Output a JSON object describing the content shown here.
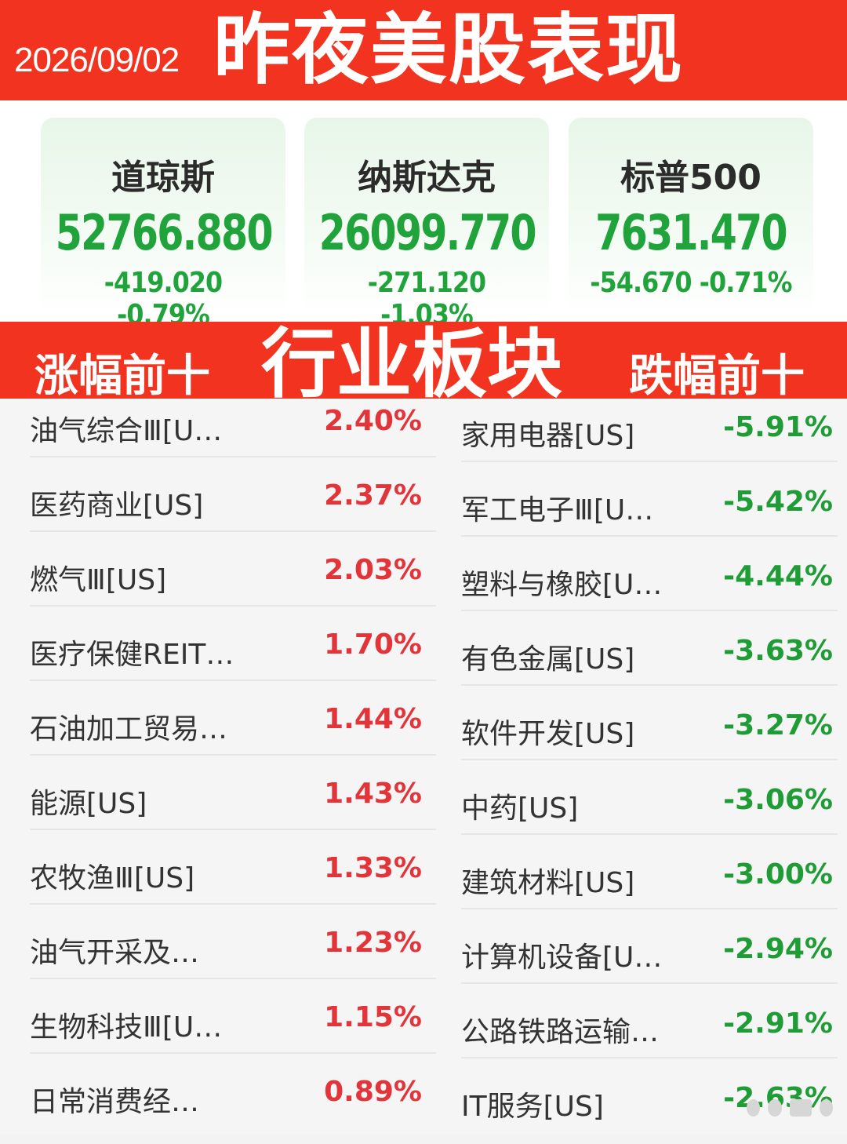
{
  "header": {
    "date": "2026/09/02",
    "title": "昨夜美股表现"
  },
  "indices": [
    {
      "name": "道琼斯",
      "value": "52766.880",
      "change": "-419.020",
      "change_pct": "-0.79%"
    },
    {
      "name": "纳斯达克",
      "value": "26099.770",
      "change": "-271.120",
      "change_pct": "-1.03%"
    },
    {
      "name": "标普500",
      "value": "7631.470",
      "change": "-54.670",
      "change_pct": "-0.71%"
    }
  ],
  "sector_banner": {
    "left": "涨幅前十",
    "center": "行业板块",
    "right": "跌幅前十"
  },
  "gainers": [
    {
      "name": "油气综合Ⅲ[U…",
      "pct": "2.40%"
    },
    {
      "name": "医药商业[US]",
      "pct": "2.37%"
    },
    {
      "name": "燃气Ⅲ[US]",
      "pct": "2.03%"
    },
    {
      "name": "医疗保健REIT…",
      "pct": "1.70%"
    },
    {
      "name": "石油加工贸易…",
      "pct": "1.44%"
    },
    {
      "name": "能源[US]",
      "pct": "1.43%"
    },
    {
      "name": "农牧渔Ⅲ[US]",
      "pct": "1.33%"
    },
    {
      "name": "油气开采及…",
      "pct": "1.23%"
    },
    {
      "name": "生物科技Ⅲ[U…",
      "pct": "1.15%"
    },
    {
      "name": "日常消费经…",
      "pct": "0.89%"
    }
  ],
  "losers": [
    {
      "name": "家用电器[US]",
      "pct": "-5.91%"
    },
    {
      "name": "军工电子Ⅲ[U…",
      "pct": "-5.42%"
    },
    {
      "name": "塑料与橡胶[U…",
      "pct": "-4.44%"
    },
    {
      "name": "有色金属[US]",
      "pct": "-3.63%"
    },
    {
      "name": "软件开发[US]",
      "pct": "-3.27%"
    },
    {
      "name": "中药[US]",
      "pct": "-3.06%"
    },
    {
      "name": "建筑材料[US]",
      "pct": "-3.00%"
    },
    {
      "name": "计算机设备[U…",
      "pct": "-2.94%"
    },
    {
      "name": "公路铁路运输…",
      "pct": "-2.91%"
    },
    {
      "name": "IT服务[US]",
      "pct": "-2.63%"
    }
  ],
  "colors": {
    "banner_red": "#f2331f",
    "gain_red": "#e3343a",
    "loss_green": "#1f9c35",
    "index_green": "#20a33a"
  }
}
